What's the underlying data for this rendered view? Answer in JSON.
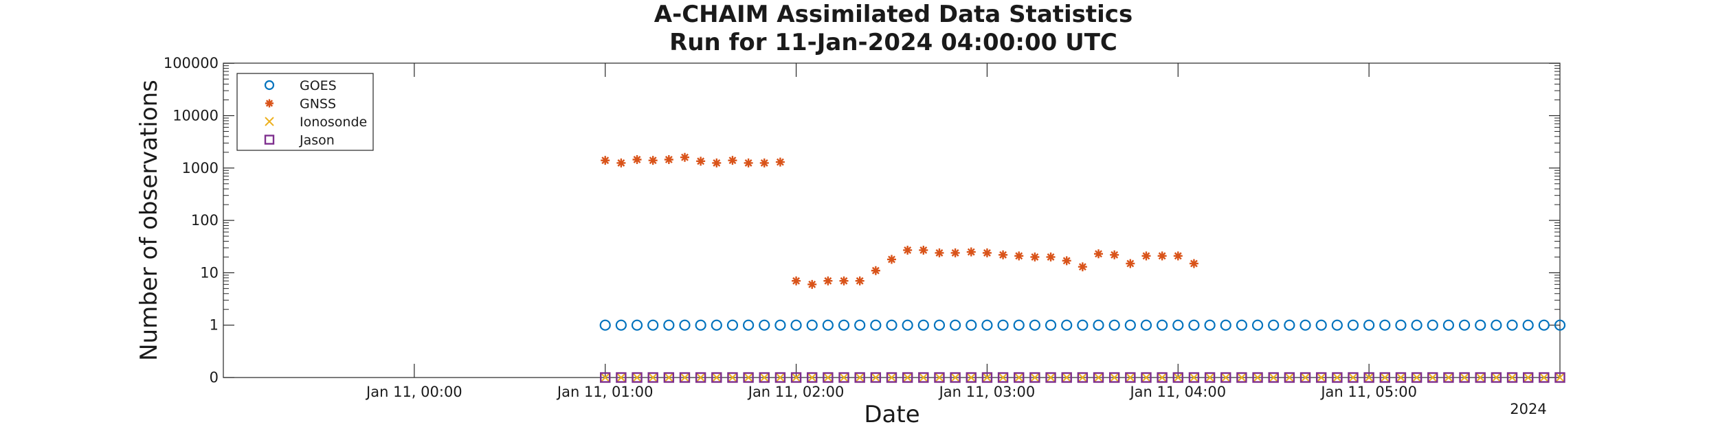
{
  "chart_data": {
    "type": "scatter",
    "title": "A-CHAIM Assimilated Data Statistics",
    "subtitle": "Run for 11-Jan-2024 04:00:00 UTC",
    "xlabel": "Date",
    "ylabel": "Number of observations",
    "x_year_label": "2024",
    "x_axis": {
      "start": "2024-01-10T23:00",
      "end": "2024-01-11T06:00",
      "tick_labels": [
        "Jan 11, 00:00",
        "Jan 11, 01:00",
        "Jan 11, 02:00",
        "Jan 11, 03:00",
        "Jan 11, 04:00",
        "Jan 11, 05:00"
      ],
      "tick_times": [
        "2024-01-11T00:00",
        "2024-01-11T01:00",
        "2024-01-11T02:00",
        "2024-01-11T03:00",
        "2024-01-11T04:00",
        "2024-01-11T05:00"
      ]
    },
    "y_axis": {
      "scale": "log",
      "tick_labels": [
        "0",
        "1",
        "10",
        "100",
        "1000",
        "10000",
        "100000"
      ],
      "tick_values": [
        0,
        1,
        10,
        100,
        1000,
        10000,
        100000
      ]
    },
    "grid": false,
    "legend_position": "top-left",
    "series": [
      {
        "name": "GOES",
        "marker": "circle",
        "color": "#0072BD",
        "x_start": "2024-01-11T01:00",
        "x_end": "2024-01-11T06:00",
        "step_minutes": 5,
        "values": [
          1,
          1,
          1,
          1,
          1,
          1,
          1,
          1,
          1,
          1,
          1,
          1,
          1,
          1,
          1,
          1,
          1,
          1,
          1,
          1,
          1,
          1,
          1,
          1,
          1,
          1,
          1,
          1,
          1,
          1,
          1,
          1,
          1,
          1,
          1,
          1,
          1,
          1,
          1,
          1,
          1,
          1,
          1,
          1,
          1,
          1,
          1,
          1,
          1,
          1,
          1,
          1,
          1,
          1,
          1,
          1,
          1,
          1,
          1,
          1,
          1
        ]
      },
      {
        "name": "GNSS",
        "marker": "asterisk",
        "color": "#D95319",
        "points": [
          [
            "2024-01-11T01:00",
            1400
          ],
          [
            "2024-01-11T01:05",
            1250
          ],
          [
            "2024-01-11T01:10",
            1450
          ],
          [
            "2024-01-11T01:15",
            1400
          ],
          [
            "2024-01-11T01:20",
            1450
          ],
          [
            "2024-01-11T01:25",
            1600
          ],
          [
            "2024-01-11T01:30",
            1350
          ],
          [
            "2024-01-11T01:35",
            1250
          ],
          [
            "2024-01-11T01:40",
            1400
          ],
          [
            "2024-01-11T01:45",
            1250
          ],
          [
            "2024-01-11T01:50",
            1250
          ],
          [
            "2024-01-11T01:55",
            1300
          ],
          [
            "2024-01-11T02:00",
            7
          ],
          [
            "2024-01-11T02:05",
            6
          ],
          [
            "2024-01-11T02:10",
            7
          ],
          [
            "2024-01-11T02:15",
            7
          ],
          [
            "2024-01-11T02:20",
            7
          ],
          [
            "2024-01-11T02:25",
            11
          ],
          [
            "2024-01-11T02:30",
            18
          ],
          [
            "2024-01-11T02:35",
            27
          ],
          [
            "2024-01-11T02:40",
            27
          ],
          [
            "2024-01-11T02:45",
            24
          ],
          [
            "2024-01-11T02:50",
            24
          ],
          [
            "2024-01-11T02:55",
            25
          ],
          [
            "2024-01-11T03:00",
            24
          ],
          [
            "2024-01-11T03:05",
            22
          ],
          [
            "2024-01-11T03:10",
            21
          ],
          [
            "2024-01-11T03:15",
            20
          ],
          [
            "2024-01-11T03:20",
            20
          ],
          [
            "2024-01-11T03:25",
            17
          ],
          [
            "2024-01-11T03:30",
            13
          ],
          [
            "2024-01-11T03:35",
            23
          ],
          [
            "2024-01-11T03:40",
            22
          ],
          [
            "2024-01-11T03:45",
            15
          ],
          [
            "2024-01-11T03:50",
            21
          ],
          [
            "2024-01-11T03:55",
            21
          ],
          [
            "2024-01-11T04:00",
            21
          ],
          [
            "2024-01-11T04:05",
            15
          ]
        ]
      },
      {
        "name": "Ionosonde",
        "marker": "x",
        "color": "#EDB120",
        "x_start": "2024-01-11T01:00",
        "x_end": "2024-01-11T06:00",
        "step_minutes": 5,
        "values": [
          0,
          0,
          0,
          0,
          0,
          0,
          0,
          0,
          0,
          0,
          0,
          0,
          0,
          0,
          0,
          0,
          0,
          0,
          0,
          0,
          0,
          0,
          0,
          0,
          0,
          0,
          0,
          0,
          0,
          0,
          0,
          0,
          0,
          0,
          0,
          0,
          0,
          0,
          0,
          0,
          0,
          0,
          0,
          0,
          0,
          0,
          0,
          0,
          0,
          0,
          0,
          0,
          0,
          0,
          0,
          0,
          0,
          0,
          0,
          0,
          0
        ]
      },
      {
        "name": "Jason",
        "marker": "square",
        "color": "#7E2F8E",
        "x_start": "2024-01-11T01:00",
        "x_end": "2024-01-11T06:00",
        "step_minutes": 5,
        "values": [
          0,
          0,
          0,
          0,
          0,
          0,
          0,
          0,
          0,
          0,
          0,
          0,
          0,
          0,
          0,
          0,
          0,
          0,
          0,
          0,
          0,
          0,
          0,
          0,
          0,
          0,
          0,
          0,
          0,
          0,
          0,
          0,
          0,
          0,
          0,
          0,
          0,
          0,
          0,
          0,
          0,
          0,
          0,
          0,
          0,
          0,
          0,
          0,
          0,
          0,
          0,
          0,
          0,
          0,
          0,
          0,
          0,
          0,
          0,
          0,
          0
        ]
      }
    ]
  }
}
